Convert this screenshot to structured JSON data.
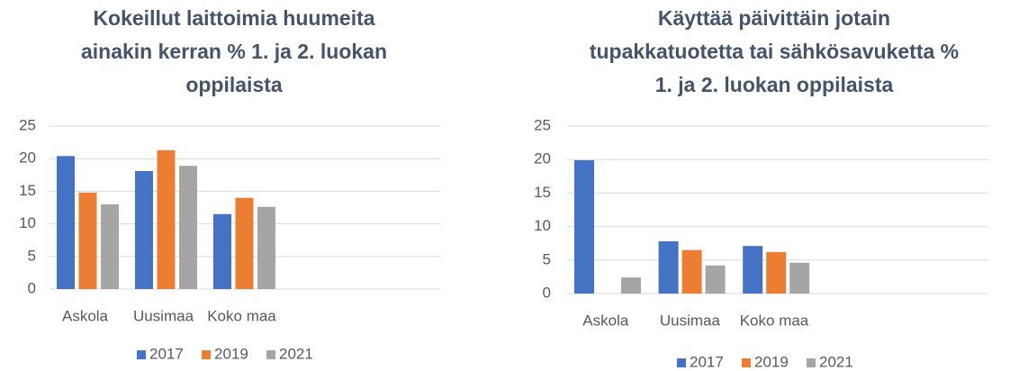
{
  "chart_data": [
    {
      "type": "bar",
      "title": [
        "Kokeillut laittoimia huumeita",
        "ainakin kerran % 1. ja 2. luokan",
        "oppilaista"
      ],
      "categories": [
        "Askola",
        "Uusimaa",
        "Koko maa",
        null,
        null
      ],
      "series": [
        {
          "name": "2017",
          "color": "#4472c4",
          "values": [
            20.4,
            18.1,
            11.5,
            null,
            null
          ]
        },
        {
          "name": "2019",
          "color": "#ed7d31",
          "values": [
            14.8,
            21.3,
            14.0,
            null,
            null
          ]
        },
        {
          "name": "2021",
          "color": "#a5a5a5",
          "values": [
            13.0,
            18.9,
            12.6,
            null,
            null
          ]
        }
      ],
      "ylim": [
        0,
        25
      ],
      "yticks": [
        0,
        5,
        10,
        15,
        20,
        25
      ],
      "grid": true,
      "legend": "bottom"
    },
    {
      "type": "bar",
      "title": [
        "Käyttää päivittäin jotain",
        "tupakkatuotetta tai sähkösavuketta %",
        "1. ja 2. luokan oppilaista"
      ],
      "categories": [
        "Askola",
        "Uusimaa",
        "Koko maa",
        null,
        null
      ],
      "series": [
        {
          "name": "2017",
          "color": "#4472c4",
          "values": [
            19.9,
            7.8,
            7.1,
            null,
            null
          ]
        },
        {
          "name": "2019",
          "color": "#ed7d31",
          "values": [
            null,
            6.5,
            6.2,
            null,
            null
          ]
        },
        {
          "name": "2021",
          "color": "#a5a5a5",
          "values": [
            2.4,
            4.2,
            4.6,
            null,
            null
          ]
        }
      ],
      "ylim": [
        0,
        25
      ],
      "yticks": [
        0,
        5,
        10,
        15,
        20,
        25
      ],
      "grid": true,
      "legend": "bottom"
    }
  ]
}
